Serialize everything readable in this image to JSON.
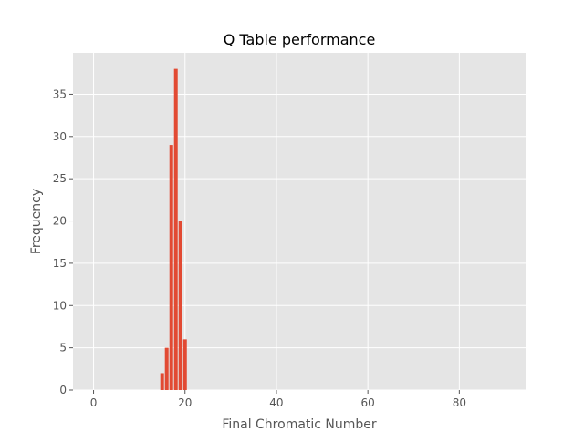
{
  "chart_data": {
    "type": "bar",
    "title": "Q Table performance",
    "xlabel": "Final Chromatic Number",
    "ylabel": "Frequency",
    "x": [
      15,
      16,
      17,
      18,
      19,
      20
    ],
    "values": [
      2,
      5,
      29,
      38,
      20,
      6
    ],
    "xlim": [
      -4.5,
      94.5
    ],
    "ylim": [
      0,
      39.9
    ],
    "xticks": [
      0,
      20,
      40,
      60,
      80
    ],
    "yticks": [
      0,
      5,
      10,
      15,
      20,
      25,
      30,
      35
    ],
    "grid": true,
    "bar_color": "#E24A33",
    "background_color": "#E5E5E5",
    "grid_color": "#FFFFFF"
  }
}
